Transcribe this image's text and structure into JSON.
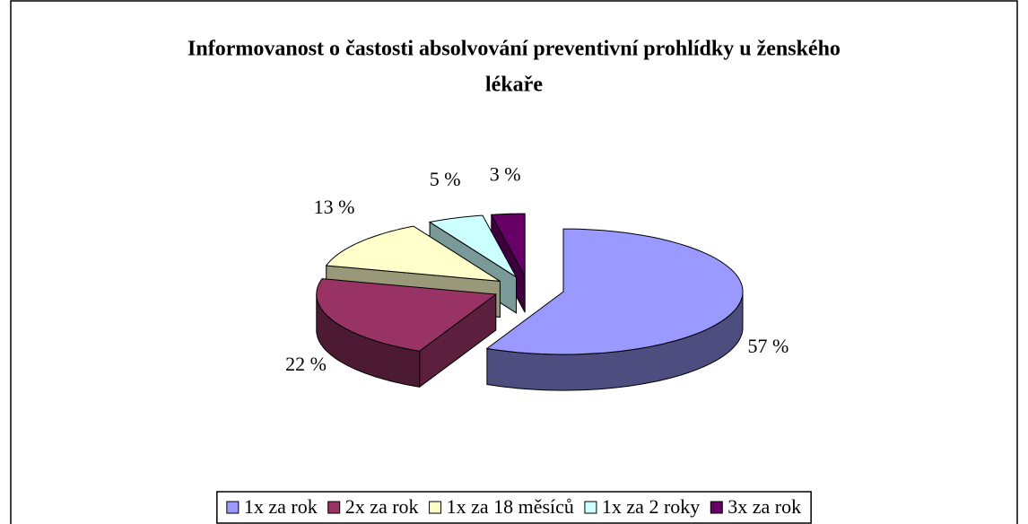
{
  "chart_data": {
    "type": "pie",
    "title": "Informovanost o častosti absolvování preventivní prohlídky u ženského lékaře",
    "categories": [
      "1x za rok",
      "2x za rok",
      "1x za 18 měsíců",
      "1x za 2 roky",
      "3x za rok"
    ],
    "values": [
      57,
      22,
      13,
      5,
      3
    ],
    "value_labels": [
      "57 %",
      "22 %",
      "13 %",
      "5 %",
      "3 %"
    ],
    "colors": [
      "#9999ff",
      "#993366",
      "#ffffcc",
      "#ccffff",
      "#660066"
    ],
    "legend": "bottom"
  }
}
